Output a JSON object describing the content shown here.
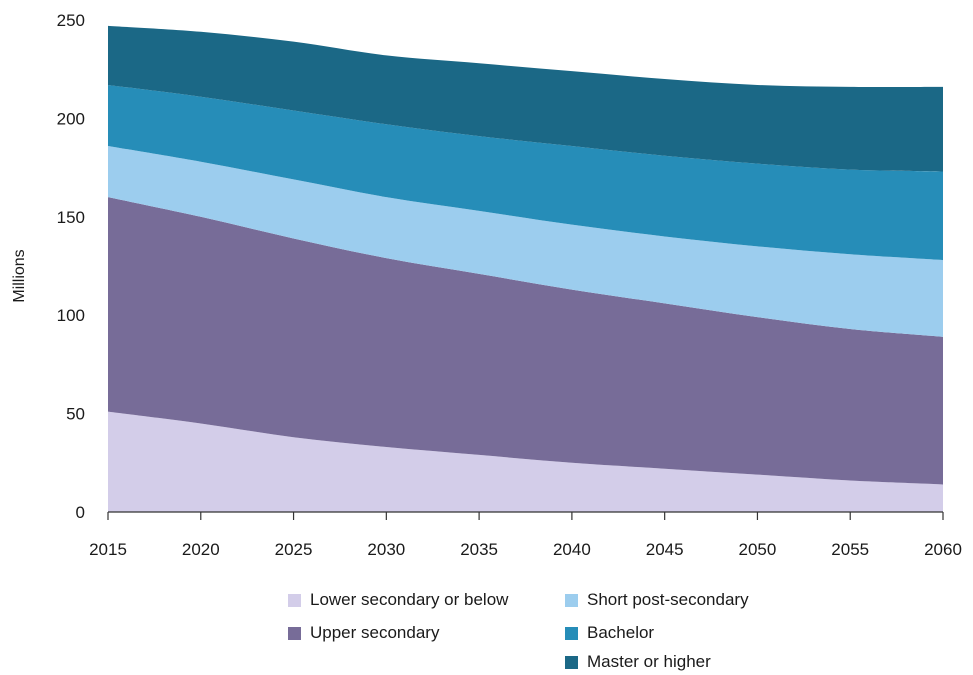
{
  "chart_data": {
    "type": "area",
    "stacked": true,
    "ylabel": "Millions",
    "xlabel": "",
    "title": "",
    "x": [
      2015,
      2020,
      2025,
      2030,
      2035,
      2040,
      2045,
      2050,
      2055,
      2060
    ],
    "x_ticks": [
      "2015",
      "2020",
      "2025",
      "2030",
      "2035",
      "2040",
      "2045",
      "2050",
      "2055",
      "2060"
    ],
    "ylim": [
      0,
      250
    ],
    "y_ticks": [
      "0",
      "50",
      "100",
      "150",
      "200",
      "250"
    ],
    "grid": false,
    "legend_position": "bottom",
    "series": [
      {
        "name": "Lower secondary or below",
        "color": "#d3cde9",
        "values": [
          51,
          45,
          38,
          33,
          29,
          25,
          22,
          19,
          16,
          14
        ]
      },
      {
        "name": "Upper secondary",
        "color": "#776c98",
        "values": [
          109,
          105,
          101,
          96,
          92,
          88,
          84,
          80,
          77,
          75
        ]
      },
      {
        "name": "Short post-secondary",
        "color": "#9ccdee",
        "values": [
          26,
          28,
          30,
          31,
          32,
          33,
          34,
          36,
          38,
          39
        ]
      },
      {
        "name": "Bachelor",
        "color": "#268db8",
        "values": [
          31,
          33,
          35,
          37,
          38,
          40,
          41,
          42,
          43,
          45
        ]
      },
      {
        "name": "Master or higher",
        "color": "#1b6886",
        "values": [
          30,
          33,
          35,
          35,
          37,
          38,
          39,
          40,
          42,
          43
        ]
      }
    ]
  }
}
